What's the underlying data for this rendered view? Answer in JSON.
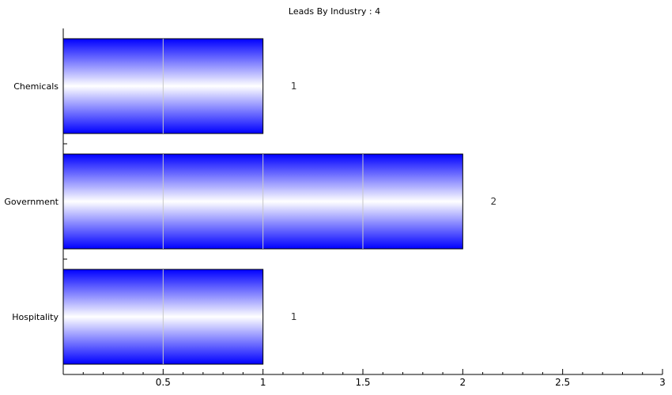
{
  "chart_data": {
    "type": "bar",
    "orientation": "horizontal",
    "title": "Leads By Industry : 4",
    "categories": [
      "Chemicals",
      "Government",
      "Hospitality"
    ],
    "values": [
      1,
      2,
      1
    ],
    "data_labels": [
      "1",
      "2",
      "1"
    ],
    "xlabel": "",
    "ylabel": "",
    "xlim": [
      0,
      3
    ],
    "x_ticks": [
      0.5,
      1,
      1.5,
      2,
      2.5,
      3
    ],
    "x_tick_labels": [
      "0.5",
      "1",
      "1.5",
      "2",
      "2.5",
      "3"
    ],
    "grid": false,
    "bar_color": "#0000ff",
    "bar_highlight_color": "#ffffff"
  }
}
